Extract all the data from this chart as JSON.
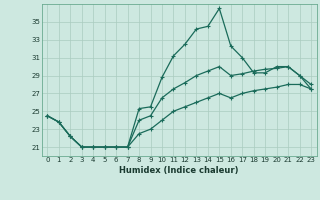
{
  "xlabel": "Humidex (Indice chaleur)",
  "background_color": "#cde8e0",
  "grid_color": "#aaccbf",
  "line_color": "#1a6b5a",
  "x_values": [
    0,
    1,
    2,
    3,
    4,
    5,
    6,
    7,
    8,
    9,
    10,
    11,
    12,
    13,
    14,
    15,
    16,
    17,
    18,
    19,
    20,
    21,
    22,
    23
  ],
  "line1_y": [
    24.5,
    23.8,
    22.2,
    21.0,
    21.0,
    21.0,
    21.0,
    21.0,
    25.3,
    25.5,
    28.8,
    31.2,
    32.5,
    34.2,
    34.5,
    36.5,
    32.3,
    31.0,
    29.3,
    29.3,
    30.0,
    30.0,
    29.0,
    27.5
  ],
  "line2_y": [
    24.5,
    23.8,
    22.2,
    21.0,
    21.0,
    21.0,
    21.0,
    21.0,
    24.0,
    24.5,
    26.5,
    27.5,
    28.2,
    29.0,
    29.5,
    30.0,
    29.0,
    29.2,
    29.5,
    29.7,
    29.8,
    30.0,
    29.0,
    28.0
  ],
  "line3_y": [
    24.5,
    23.8,
    22.2,
    21.0,
    21.0,
    21.0,
    21.0,
    21.0,
    22.5,
    23.0,
    24.0,
    25.0,
    25.5,
    26.0,
    26.5,
    27.0,
    26.5,
    27.0,
    27.3,
    27.5,
    27.7,
    28.0,
    28.0,
    27.5
  ],
  "ylim": [
    20.0,
    37.0
  ],
  "yticks": [
    21,
    23,
    25,
    27,
    29,
    31,
    33,
    35
  ],
  "xlim": [
    -0.5,
    23.5
  ],
  "xticks": [
    0,
    1,
    2,
    3,
    4,
    5,
    6,
    7,
    8,
    9,
    10,
    11,
    12,
    13,
    14,
    15,
    16,
    17,
    18,
    19,
    20,
    21,
    22,
    23
  ],
  "tick_fontsize": 5,
  "xlabel_fontsize": 6,
  "marker_size": 2.5,
  "line_width": 0.9
}
